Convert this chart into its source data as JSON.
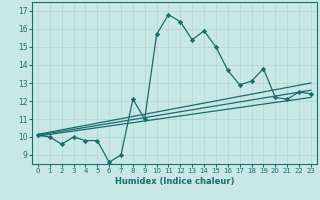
{
  "title": "",
  "xlabel": "Humidex (Indice chaleur)",
  "ylabel": "",
  "bg_color": "#c8e8e8",
  "grid_color": "#b8d8d8",
  "line_color": "#1a6b6b",
  "xlim": [
    -0.5,
    23.5
  ],
  "ylim": [
    8.5,
    17.5
  ],
  "xticks": [
    0,
    1,
    2,
    3,
    4,
    5,
    6,
    7,
    8,
    9,
    10,
    11,
    12,
    13,
    14,
    15,
    16,
    17,
    18,
    19,
    20,
    21,
    22,
    23
  ],
  "yticks": [
    9,
    10,
    11,
    12,
    13,
    14,
    15,
    16,
    17
  ],
  "main_x": [
    0,
    1,
    2,
    3,
    4,
    5,
    6,
    7,
    8,
    9,
    10,
    11,
    12,
    13,
    14,
    15,
    16,
    17,
    18,
    19,
    20,
    21,
    22,
    23
  ],
  "main_y": [
    10.1,
    10.0,
    9.6,
    10.0,
    9.8,
    9.8,
    8.6,
    9.0,
    12.1,
    11.0,
    15.7,
    16.8,
    16.4,
    15.4,
    15.9,
    15.0,
    13.7,
    12.9,
    13.1,
    13.8,
    12.2,
    12.1,
    12.5,
    12.4
  ],
  "trend1_x": [
    0,
    23
  ],
  "trend1_y": [
    10.05,
    12.2
  ],
  "trend2_x": [
    0,
    23
  ],
  "trend2_y": [
    10.1,
    12.6
  ],
  "trend3_x": [
    0,
    23
  ],
  "trend3_y": [
    10.15,
    13.0
  ]
}
